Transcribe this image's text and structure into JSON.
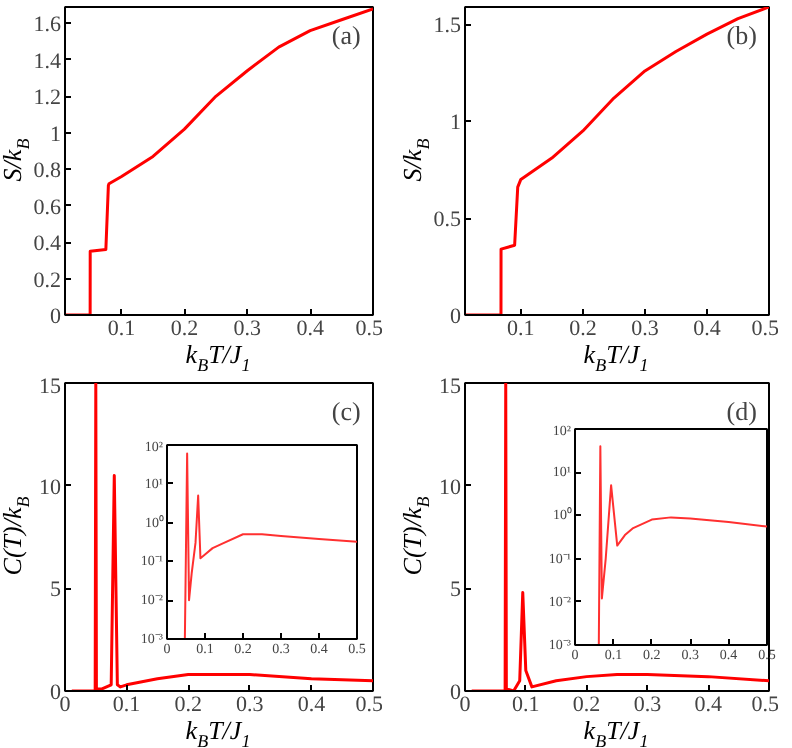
{
  "chart_data": [
    {
      "type": "line",
      "annotations": [
        "(a)"
      ],
      "xlabel": "k$_{B}$T/J$_{1}$",
      "ylabel": "S/k$_{B}$",
      "xlim": [
        0.01,
        0.5
      ],
      "ylim": [
        0,
        1.69
      ],
      "xticks": [
        0.1,
        0.2,
        0.3,
        0.4,
        0.5
      ],
      "yticks": [
        0,
        0.2,
        0.4,
        0.6,
        0.8,
        1,
        1.2,
        1.4,
        1.6
      ],
      "x": [
        0.01,
        0.05,
        0.0501,
        0.075,
        0.079,
        0.08,
        0.1,
        0.15,
        0.2,
        0.25,
        0.3,
        0.35,
        0.4,
        0.45,
        0.5
      ],
      "series": [
        {
          "color": "#ff0000",
          "values": [
            0,
            0,
            0.35,
            0.36,
            0.71,
            0.72,
            0.76,
            0.87,
            1.02,
            1.2,
            1.34,
            1.47,
            1.56,
            1.62,
            1.68
          ]
        }
      ]
    },
    {
      "type": "line",
      "annotations": [
        "(b)"
      ],
      "xlabel": "k$_{B}$T/J$_{1}$",
      "ylabel": "S/k$_{B}$",
      "xlim": [
        0.01,
        0.5
      ],
      "ylim": [
        0,
        1.59
      ],
      "xticks": [
        0.1,
        0.2,
        0.3,
        0.4,
        0.5
      ],
      "yticks": [
        0,
        0.5,
        1,
        1.5
      ],
      "x": [
        0.01,
        0.068,
        0.0681,
        0.09,
        0.095,
        0.1,
        0.15,
        0.2,
        0.25,
        0.3,
        0.35,
        0.4,
        0.45,
        0.5
      ],
      "series": [
        {
          "color": "#ff0000",
          "values": [
            0,
            0,
            0.34,
            0.36,
            0.66,
            0.7,
            0.81,
            0.95,
            1.12,
            1.26,
            1.36,
            1.45,
            1.53,
            1.59
          ]
        }
      ]
    },
    {
      "type": "line",
      "annotations": [
        "(c)"
      ],
      "xlabel": "k$_{B}$T/J$_{1}$",
      "ylabel": "C(T)/k$_{B}$",
      "xlim": [
        0,
        0.5
      ],
      "ylim": [
        0,
        15
      ],
      "xticks": [
        0,
        0.1,
        0.2,
        0.3,
        0.4,
        0.5
      ],
      "yticks": [
        0,
        5,
        10,
        15
      ],
      "x": [
        0.011,
        0.049,
        0.05,
        0.051,
        0.06,
        0.075,
        0.08,
        0.085,
        0.09,
        0.1,
        0.15,
        0.2,
        0.25,
        0.3,
        0.4,
        0.5
      ],
      "series": [
        {
          "color": "#ff0000",
          "values": [
            0,
            0,
            15,
            0.1,
            0.1,
            0.3,
            10.5,
            0.3,
            0.2,
            0.3,
            0.6,
            0.8,
            0.8,
            0.8,
            0.6,
            0.5
          ]
        }
      ]
    },
    {
      "type": "line",
      "log": "y",
      "xlim": [
        0,
        0.5
      ],
      "ylim": [
        0.001,
        100
      ],
      "xticks": [
        0,
        0.1,
        0.2,
        0.3,
        0.4,
        0.5
      ],
      "yticks": [
        {
          "value": 0.001,
          "label": "10⁻³"
        },
        {
          "value": 0.01,
          "label": "10⁻²"
        },
        {
          "value": 0.1,
          "label": "10⁻¹"
        },
        {
          "value": 1,
          "label": "10⁰"
        },
        {
          "value": 10,
          "label": "10¹"
        },
        {
          "value": 100,
          "label": "10²"
        }
      ],
      "x": [
        0.047,
        0.053,
        0.058,
        0.065,
        0.075,
        0.082,
        0.088,
        0.1,
        0.12,
        0.15,
        0.2,
        0.25,
        0.3,
        0.4,
        0.5
      ],
      "series": [
        {
          "color": "#ff3030",
          "values": [
            0.001,
            60,
            0.01,
            0.05,
            0.3,
            5,
            0.12,
            0.15,
            0.22,
            0.3,
            0.5,
            0.5,
            0.45,
            0.38,
            0.32
          ]
        }
      ]
    },
    {
      "type": "line",
      "annotations": [
        "(d)"
      ],
      "xlabel": "k$_{B}$T/J$_{1}$",
      "ylabel": "C(T)/k$_{B}$",
      "xlim": [
        0,
        0.5
      ],
      "ylim": [
        0,
        15
      ],
      "xticks": [
        0,
        0.1,
        0.2,
        0.3,
        0.4,
        0.5
      ],
      "yticks": [
        0,
        5,
        10,
        15
      ],
      "x": [
        0.011,
        0.066,
        0.067,
        0.068,
        0.08,
        0.09,
        0.095,
        0.1,
        0.11,
        0.15,
        0.2,
        0.25,
        0.3,
        0.4,
        0.5
      ],
      "series": [
        {
          "color": "#ff0000",
          "values": [
            0,
            0,
            15,
            0.1,
            0,
            0.5,
            4.8,
            1,
            0.2,
            0.5,
            0.7,
            0.8,
            0.8,
            0.7,
            0.5
          ]
        }
      ]
    },
    {
      "type": "line",
      "log": "y",
      "xlim": [
        0,
        0.5
      ],
      "ylim": [
        0.001,
        100
      ],
      "xticks": [
        0,
        0.1,
        0.2,
        0.3,
        0.4,
        0.5
      ],
      "yticks": [
        {
          "value": 0.001,
          "label": "10⁻³"
        },
        {
          "value": 0.01,
          "label": "10⁻²"
        },
        {
          "value": 0.1,
          "label": "10⁻¹"
        },
        {
          "value": 1,
          "label": "10⁰"
        },
        {
          "value": 10,
          "label": "10¹"
        },
        {
          "value": 100,
          "label": "10²"
        }
      ],
      "x": [
        0.062,
        0.066,
        0.07,
        0.08,
        0.094,
        0.11,
        0.13,
        0.15,
        0.2,
        0.25,
        0.3,
        0.4,
        0.5
      ],
      "series": [
        {
          "color": "#ff3030",
          "values": [
            0.001,
            40,
            0.012,
            0.1,
            5,
            0.2,
            0.35,
            0.5,
            0.8,
            0.9,
            0.85,
            0.7,
            0.55
          ]
        }
      ]
    }
  ]
}
